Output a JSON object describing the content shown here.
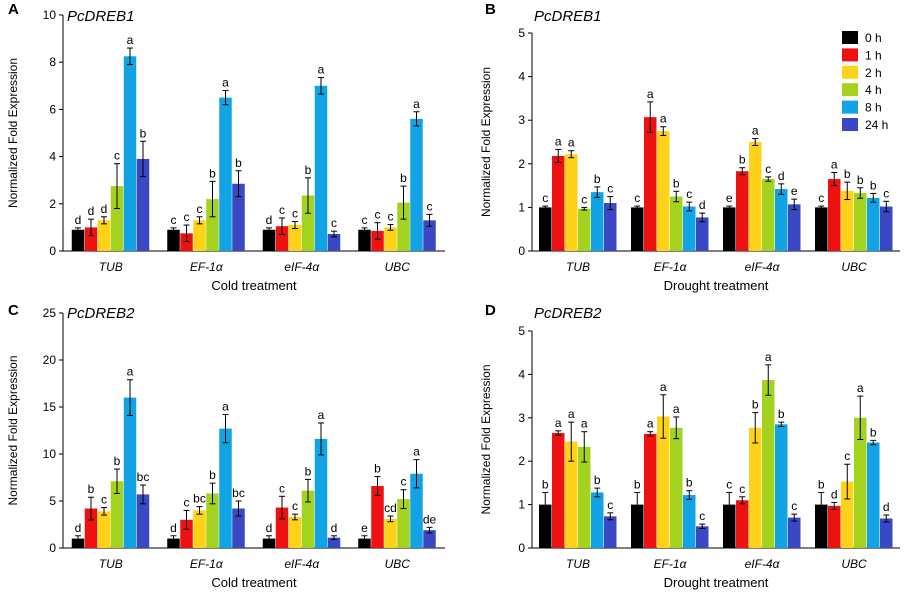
{
  "colors": {
    "series": [
      "#000000",
      "#ee1111",
      "#ffd21a",
      "#a3d31e",
      "#11a3e3",
      "#3b48c4"
    ],
    "axis": "#000000"
  },
  "legend": {
    "entries": [
      "0 h",
      "1 h",
      "2 h",
      "4 h",
      "8 h",
      "24 h"
    ]
  },
  "chart_data": [
    {
      "type": "bar",
      "panel_letter": "A",
      "title": "PcDREB1",
      "xlabel": "Cold treatment",
      "ylabel": "Normalized Fold Expression",
      "categories": [
        "TUB",
        "EF-1α",
        "eIF-4α",
        "UBC"
      ],
      "ylim": [
        0,
        10
      ],
      "yticks": [
        "0",
        "2",
        "4",
        "6",
        "8",
        "10"
      ],
      "series": [
        {
          "name": "0 h",
          "values": [
            0.9,
            0.9,
            0.9,
            0.9
          ],
          "errors": [
            0.08,
            0.08,
            0.08,
            0.08
          ],
          "letters": [
            "d",
            "c",
            "d",
            "c"
          ]
        },
        {
          "name": "1 h",
          "values": [
            1.0,
            0.75,
            1.05,
            0.85
          ],
          "errors": [
            0.35,
            0.35,
            0.35,
            0.35
          ],
          "letters": [
            "d",
            "c",
            "c",
            "c"
          ]
        },
        {
          "name": "2 h",
          "values": [
            1.3,
            1.3,
            1.1,
            1.0
          ],
          "errors": [
            0.15,
            0.15,
            0.15,
            0.12
          ],
          "letters": [
            "d",
            "c",
            "c",
            "c"
          ]
        },
        {
          "name": "4 h",
          "values": [
            2.75,
            2.2,
            2.35,
            2.05
          ],
          "errors": [
            0.95,
            0.75,
            0.75,
            0.7
          ],
          "letters": [
            "c",
            "b",
            "b",
            "b"
          ]
        },
        {
          "name": "8 h",
          "values": [
            8.25,
            6.5,
            7.0,
            5.6
          ],
          "errors": [
            0.35,
            0.3,
            0.35,
            0.3
          ],
          "letters": [
            "a",
            "a",
            "a",
            "a"
          ]
        },
        {
          "name": "24 h",
          "values": [
            3.9,
            2.85,
            0.72,
            1.3
          ],
          "errors": [
            0.75,
            0.55,
            0.12,
            0.25
          ],
          "letters": [
            "b",
            "b",
            "c",
            "c"
          ]
        }
      ]
    },
    {
      "type": "bar",
      "panel_letter": "B",
      "title": "PcDREB1",
      "xlabel": "Drought treatment",
      "ylabel": "Normalized Fold Expression",
      "categories": [
        "TUB",
        "EF-1α",
        "eIF-4α",
        "UBC"
      ],
      "ylim": [
        0,
        5
      ],
      "yticks": [
        "0",
        "1",
        "2",
        "3",
        "4",
        "5"
      ],
      "legend_position": "top-right",
      "series": [
        {
          "name": "0 h",
          "values": [
            1.0,
            1.0,
            1.0,
            1.0
          ],
          "errors": [
            0.03,
            0.03,
            0.03,
            0.03
          ],
          "letters": [
            "c",
            "c",
            "e",
            "c"
          ]
        },
        {
          "name": "1 h",
          "values": [
            2.18,
            3.07,
            1.83,
            1.65
          ],
          "errors": [
            0.15,
            0.35,
            0.08,
            0.15
          ],
          "letters": [
            "a",
            "a",
            "b",
            "a"
          ]
        },
        {
          "name": "2 h",
          "values": [
            2.22,
            2.75,
            2.5,
            1.38
          ],
          "errors": [
            0.08,
            0.1,
            0.08,
            0.2
          ],
          "letters": [
            "a",
            "a",
            "a",
            "b"
          ]
        },
        {
          "name": "4 h",
          "values": [
            0.97,
            1.25,
            1.65,
            1.33
          ],
          "errors": [
            0.03,
            0.12,
            0.05,
            0.12
          ],
          "letters": [
            "c",
            "b",
            "c",
            "b"
          ]
        },
        {
          "name": "8 h",
          "values": [
            1.35,
            1.02,
            1.42,
            1.22
          ],
          "errors": [
            0.12,
            0.1,
            0.12,
            0.1
          ],
          "letters": [
            "b",
            "c",
            "d",
            "b"
          ]
        },
        {
          "name": "24 h",
          "values": [
            1.1,
            0.77,
            1.07,
            1.02
          ],
          "errors": [
            0.15,
            0.1,
            0.12,
            0.12
          ],
          "letters": [
            "c",
            "d",
            "e",
            "c"
          ]
        }
      ]
    },
    {
      "type": "bar",
      "panel_letter": "C",
      "title": "PcDREB2",
      "xlabel": "Cold treatment",
      "ylabel": "Normalized Fold Expression",
      "categories": [
        "TUB",
        "EF-1α",
        "eIF-4α",
        "UBC"
      ],
      "ylim": [
        0,
        25
      ],
      "yticks": [
        "0",
        "5",
        "10",
        "15",
        "20",
        "25"
      ],
      "series": [
        {
          "name": "0 h",
          "values": [
            1.0,
            1.0,
            1.0,
            1.0
          ],
          "errors": [
            0.3,
            0.3,
            0.3,
            0.3
          ],
          "letters": [
            "d",
            "d",
            "d",
            "e"
          ]
        },
        {
          "name": "1 h",
          "values": [
            4.2,
            3.0,
            4.3,
            6.6
          ],
          "errors": [
            1.2,
            1.0,
            1.2,
            1.0
          ],
          "letters": [
            "b",
            "c",
            "c",
            "b"
          ]
        },
        {
          "name": "2 h",
          "values": [
            3.9,
            4.0,
            3.3,
            3.1
          ],
          "errors": [
            0.4,
            0.4,
            0.3,
            0.3
          ],
          "letters": [
            "c",
            "bc",
            "c",
            "cd"
          ]
        },
        {
          "name": "4 h",
          "values": [
            7.1,
            5.8,
            6.1,
            5.2
          ],
          "errors": [
            1.3,
            1.1,
            1.2,
            1.0
          ],
          "letters": [
            "b",
            "b",
            "b",
            "c"
          ]
        },
        {
          "name": "8 h",
          "values": [
            16.0,
            12.7,
            11.6,
            7.9
          ],
          "errors": [
            1.9,
            1.5,
            1.7,
            1.5
          ],
          "letters": [
            "a",
            "a",
            "a",
            "a"
          ]
        },
        {
          "name": "24 h",
          "values": [
            5.7,
            4.2,
            1.1,
            1.9
          ],
          "errors": [
            1.0,
            0.8,
            0.2,
            0.3
          ],
          "letters": [
            "bc",
            "bc",
            "d",
            "de"
          ]
        }
      ]
    },
    {
      "type": "bar",
      "panel_letter": "D",
      "title": "PcDREB2",
      "xlabel": "Drought treatment",
      "ylabel": "Normalized Fold Expression",
      "categories": [
        "TUB",
        "EF-1α",
        "eIF-4α",
        "UBC"
      ],
      "ylim": [
        0,
        5
      ],
      "yticks": [
        "0",
        "1",
        "2",
        "3",
        "4",
        "5"
      ],
      "series": [
        {
          "name": "0 h",
          "values": [
            1.0,
            1.0,
            1.0,
            1.0
          ],
          "errors": [
            0.28,
            0.28,
            0.28,
            0.28
          ],
          "letters": [
            "b",
            "b",
            "c",
            "b"
          ]
        },
        {
          "name": "1 h",
          "values": [
            2.65,
            2.63,
            1.1,
            0.97
          ],
          "errors": [
            0.05,
            0.05,
            0.08,
            0.08
          ],
          "letters": [
            "a",
            "a",
            "c",
            "d"
          ]
        },
        {
          "name": "2 h",
          "values": [
            2.45,
            3.03,
            2.77,
            1.53
          ],
          "errors": [
            0.45,
            0.5,
            0.35,
            0.4
          ],
          "letters": [
            "a",
            "a",
            "b",
            "c"
          ]
        },
        {
          "name": "4 h",
          "values": [
            2.33,
            2.77,
            3.87,
            3.0
          ],
          "errors": [
            0.35,
            0.25,
            0.35,
            0.5
          ],
          "letters": [
            "a",
            "a",
            "a",
            "a"
          ]
        },
        {
          "name": "8 h",
          "values": [
            1.28,
            1.22,
            2.85,
            2.43
          ],
          "errors": [
            0.1,
            0.1,
            0.05,
            0.05
          ],
          "letters": [
            "b",
            "b",
            "b",
            "b"
          ]
        },
        {
          "name": "24 h",
          "values": [
            0.73,
            0.5,
            0.7,
            0.68
          ],
          "errors": [
            0.08,
            0.05,
            0.08,
            0.08
          ],
          "letters": [
            "c",
            "c",
            "c",
            "d"
          ]
        }
      ]
    }
  ]
}
